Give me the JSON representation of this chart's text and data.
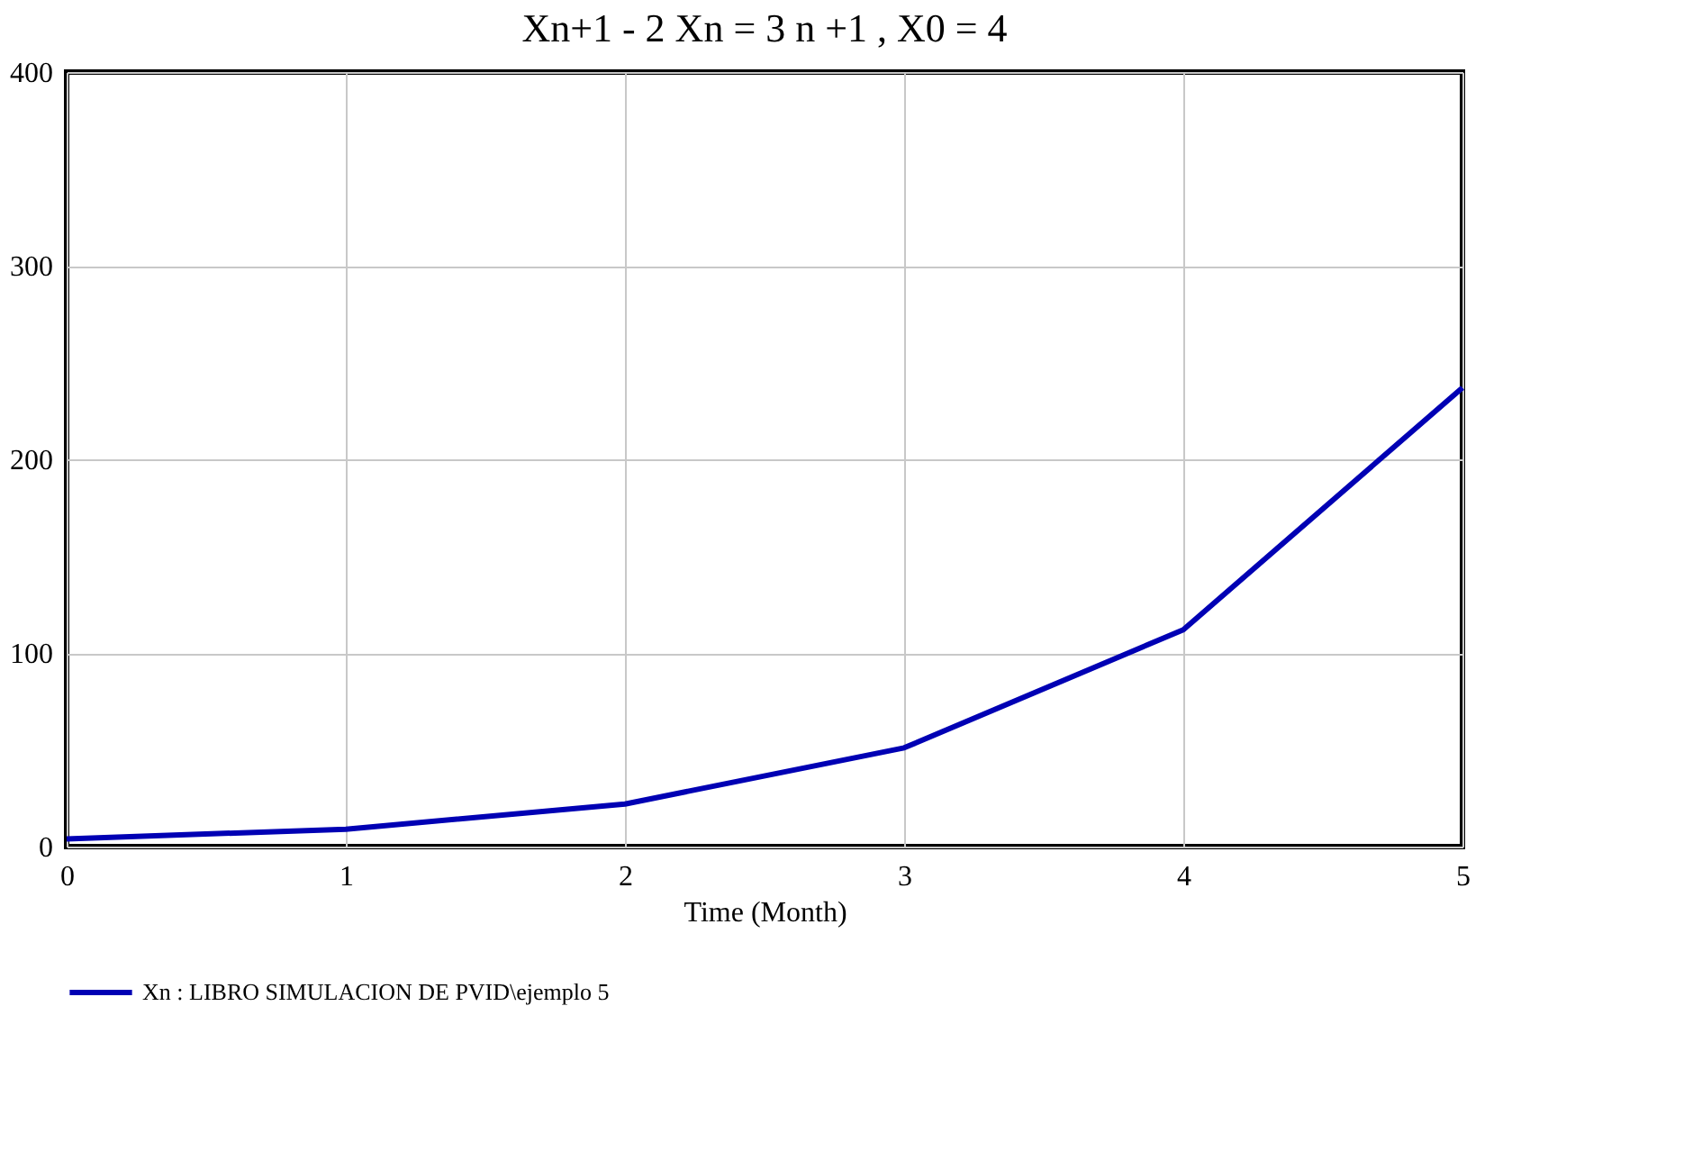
{
  "chart_data": {
    "type": "line",
    "title": "Xn+1  -  2 Xn = 3 n +1  , X0 = 4",
    "xlabel": "Time (Month)",
    "x": [
      0,
      1,
      2,
      3,
      4,
      5
    ],
    "series": [
      {
        "name": "Xn : LIBRO SIMULACION DE PVID\\ejemplo 5",
        "color": "#0000b4",
        "values": [
          4,
          9,
          22,
          51,
          112,
          237
        ]
      }
    ],
    "xlim": [
      0,
      5
    ],
    "xticks": [
      0,
      1,
      2,
      3,
      4,
      5
    ],
    "ylim": [
      0,
      400
    ],
    "yticks": [
      0,
      100,
      200,
      300,
      400
    ],
    "grid": true,
    "legend": "bottom",
    "marker": "none",
    "line_style": "solid"
  }
}
